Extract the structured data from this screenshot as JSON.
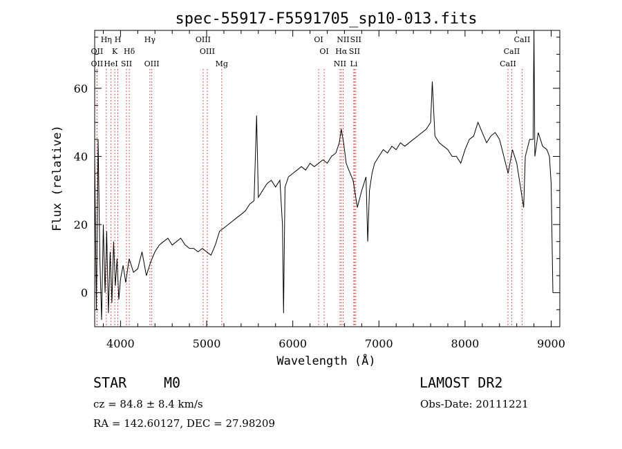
{
  "chart_data": {
    "type": "line",
    "title": "spec-55917-F5591705_sp10-013.fits",
    "xlabel": "Wavelength (Å)",
    "ylabel": "Flux (relative)",
    "xlim": [
      3700,
      9100
    ],
    "ylim": [
      -10,
      77
    ],
    "x_ticks": [
      4000,
      5000,
      6000,
      7000,
      8000,
      9000
    ],
    "y_ticks": [
      0,
      20,
      40,
      60
    ],
    "grid": false,
    "line_color": "#000000",
    "marker_color": "#d62020",
    "series": [
      {
        "x": [
          3700,
          3720,
          3740,
          3760,
          3780,
          3800,
          3820,
          3840,
          3860,
          3880,
          3900,
          3920,
          3940,
          3960,
          3980,
          4000,
          4030,
          4060,
          4100,
          4150,
          4200,
          4250,
          4300,
          4350,
          4400,
          4450,
          4500,
          4550,
          4600,
          4650,
          4700,
          4750,
          4800,
          4850,
          4900,
          4950,
          5000,
          5050,
          5100,
          5150,
          5200,
          5250,
          5300,
          5350,
          5400,
          5450,
          5500,
          5550,
          5580,
          5600,
          5650,
          5700,
          5750,
          5800,
          5850,
          5880,
          5893,
          5910,
          5950,
          6000,
          6050,
          6100,
          6150,
          6200,
          6250,
          6300,
          6350,
          6400,
          6450,
          6500,
          6540,
          6563,
          6590,
          6620,
          6650,
          6700,
          6750,
          6800,
          6850,
          6870,
          6890,
          6920,
          6950,
          7000,
          7050,
          7100,
          7150,
          7200,
          7250,
          7300,
          7350,
          7400,
          7450,
          7500,
          7550,
          7600,
          7620,
          7650,
          7700,
          7750,
          7800,
          7850,
          7900,
          7950,
          8000,
          8050,
          8100,
          8150,
          8200,
          8250,
          8300,
          8350,
          8400,
          8450,
          8500,
          8550,
          8600,
          8650,
          8680,
          8700,
          8750,
          8790,
          8800,
          8810,
          8850,
          8900,
          8950,
          8980,
          9000,
          9020
        ],
        "y": [
          40,
          -5,
          45,
          10,
          -8,
          20,
          0,
          18,
          -6,
          12,
          -3,
          15,
          2,
          10,
          -2,
          4,
          8,
          3,
          10,
          6,
          7,
          12,
          5,
          9,
          12,
          14,
          15,
          16,
          14,
          15,
          16,
          14,
          13,
          13,
          12,
          13,
          12,
          11,
          14,
          18,
          19,
          20,
          21,
          22,
          23,
          24,
          26,
          27,
          52,
          28,
          30,
          32,
          33,
          31,
          33,
          20,
          -6,
          31,
          34,
          35,
          36,
          37,
          36,
          38,
          37,
          38,
          39,
          38,
          40,
          41,
          44,
          48,
          44,
          38,
          36,
          33,
          25,
          30,
          34,
          15,
          30,
          35,
          38,
          40,
          42,
          41,
          43,
          42,
          44,
          43,
          44,
          45,
          46,
          47,
          48,
          50,
          62,
          46,
          44,
          43,
          42,
          40,
          40,
          38,
          42,
          45,
          46,
          50,
          47,
          44,
          46,
          47,
          45,
          40,
          35,
          42,
          38,
          30,
          25,
          40,
          45,
          45,
          78,
          40,
          47,
          43,
          42,
          40,
          32,
          0
        ]
      }
    ],
    "lines": [
      {
        "name": "OII",
        "wl": 3727,
        "row": 1
      },
      {
        "name": "OII",
        "wl": 3727,
        "row": 2
      },
      {
        "name": "Hη",
        "wl": 3835,
        "row": 0
      },
      {
        "name": "HeI",
        "wl": 3889,
        "row": 2
      },
      {
        "name": "K",
        "wl": 3934,
        "row": 1
      },
      {
        "name": "H",
        "wl": 3969,
        "row": 0
      },
      {
        "name": "SII",
        "wl": 4069,
        "row": 2
      },
      {
        "name": "Hδ",
        "wl": 4102,
        "row": 1
      },
      {
        "name": "Hγ",
        "wl": 4341,
        "row": 0
      },
      {
        "name": "OIII",
        "wl": 4363,
        "row": 2
      },
      {
        "name": "OIII",
        "wl": 4959,
        "row": 0
      },
      {
        "name": "OIII",
        "wl": 5007,
        "row": 1
      },
      {
        "name": "Mg",
        "wl": 5175,
        "row": 2
      },
      {
        "name": "OI",
        "wl": 6300,
        "row": 0
      },
      {
        "name": "OI",
        "wl": 6364,
        "row": 1
      },
      {
        "name": "NII",
        "wl": 6548,
        "row": 2
      },
      {
        "name": "Hα",
        "wl": 6563,
        "row": 1
      },
      {
        "name": "NII",
        "wl": 6584,
        "row": 0
      },
      {
        "name": "Li",
        "wl": 6708,
        "row": 2
      },
      {
        "name": "SII",
        "wl": 6717,
        "row": 1
      },
      {
        "name": "SII",
        "wl": 6731,
        "row": 0
      },
      {
        "name": "CaII",
        "wl": 8498,
        "row": 2
      },
      {
        "name": "CaII",
        "wl": 8542,
        "row": 1
      },
      {
        "name": "CaII",
        "wl": 8662,
        "row": 0
      }
    ]
  },
  "info": {
    "class_label": "STAR",
    "subclass": "M0",
    "survey": "LAMOST DR2",
    "cz": "cz = 84.8 ± 8.4 km/s",
    "obs_date": "Obs-Date: 20111221",
    "coords": "RA = 142.60127, DEC =  27.98209"
  }
}
